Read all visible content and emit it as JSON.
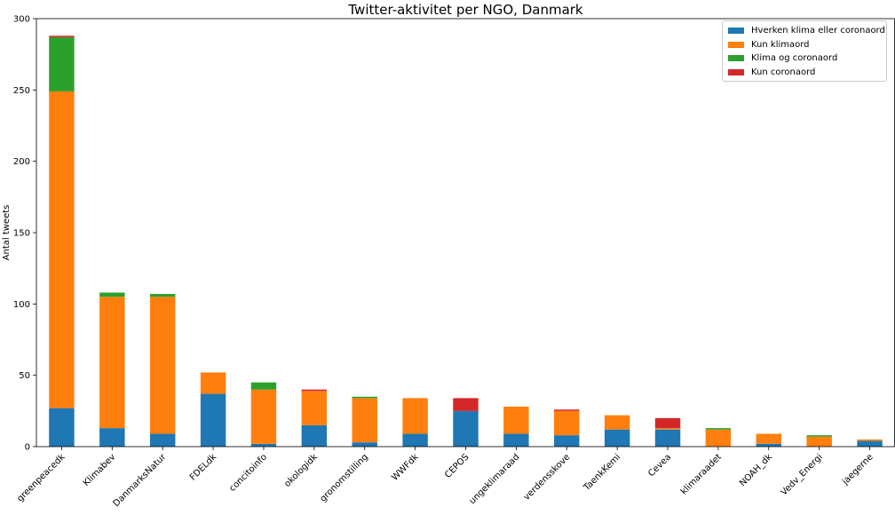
{
  "chart_data": {
    "type": "bar",
    "stacked": true,
    "title": "Twitter-aktivitet per NGO, Danmark",
    "xlabel": "",
    "ylabel": "Antal tweets",
    "ylim": [
      0,
      300
    ],
    "yticks": [
      0,
      50,
      100,
      150,
      200,
      250,
      300
    ],
    "grid": false,
    "legend_position": "top-right",
    "categories": [
      "greenpeacedk",
      "Klimabev",
      "DanmarksNatur",
      "FDELdk",
      "concitoinfo",
      "okologidk",
      "gronomstilling",
      "WWFdk",
      "CEPOS",
      "ungeklimaraad",
      "verdensskove",
      "TaenkKemi",
      "Cevea",
      "klimaraadet",
      "NOAH_dk",
      "Vedv_Energi",
      "jaegerne"
    ],
    "series": [
      {
        "name": "Hverken klima eller coronaord",
        "color": "#1f77b4",
        "values": [
          27,
          13,
          9,
          37,
          2,
          15,
          3,
          9,
          25,
          9,
          8,
          12,
          12,
          0,
          2,
          0,
          4
        ]
      },
      {
        "name": "Kun klimaord",
        "color": "#ff7f0e",
        "values": [
          222,
          92,
          96,
          15,
          38,
          24,
          31,
          25,
          0,
          19,
          17,
          10,
          1,
          12,
          7,
          7,
          1
        ]
      },
      {
        "name": "Klima og coronaord",
        "color": "#2ca02c",
        "values": [
          38,
          3,
          2,
          0,
          5,
          0,
          1,
          0,
          0,
          0,
          0,
          0,
          0,
          1,
          0,
          1,
          0
        ]
      },
      {
        "name": "Kun coronaord",
        "color": "#d62728",
        "values": [
          1,
          0,
          0,
          0,
          0,
          1,
          0,
          0,
          9,
          0,
          1,
          0,
          7,
          0,
          0,
          0,
          0
        ]
      }
    ]
  }
}
